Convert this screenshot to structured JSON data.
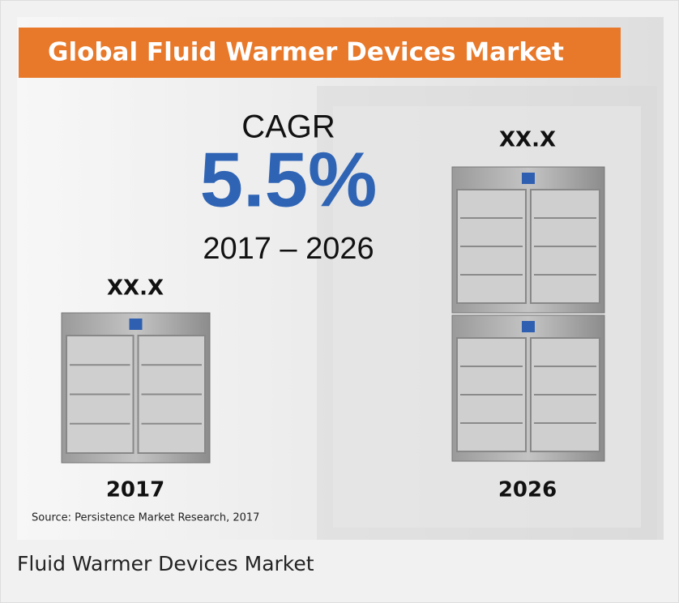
{
  "infographic": {
    "title": "Global Fluid Warmer Devices Market",
    "cagr_label": "CAGR",
    "cagr_value": "5.5%",
    "period": "2017 – 2026",
    "left": {
      "value": "XX.X",
      "year": "2017"
    },
    "right": {
      "value": "XX.X",
      "year": "2026"
    },
    "source": "Source: Persistence Market Research, 2017"
  },
  "caption": "Fluid Warmer Devices Market"
}
